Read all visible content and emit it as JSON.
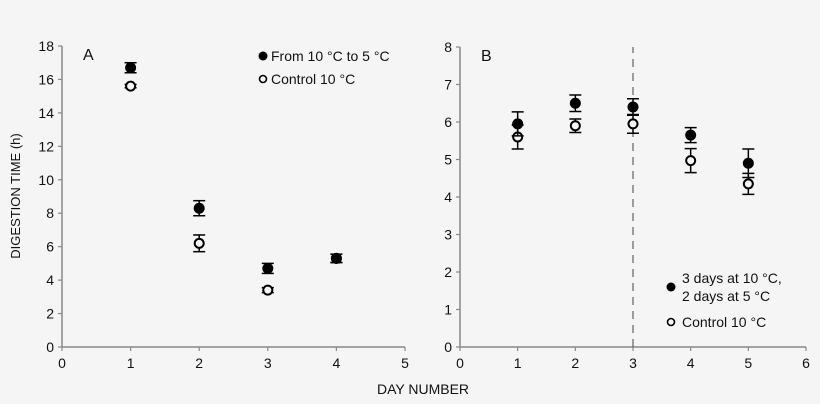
{
  "chart_data": [
    {
      "type": "scatter",
      "panel": "A",
      "xlabel": "DAY NUMBER",
      "ylabel": "DIGESTION TIME (h)",
      "xlim": [
        0,
        5
      ],
      "ylim": [
        0,
        18
      ],
      "xticks": [
        0,
        1,
        2,
        3,
        4,
        5
      ],
      "yticks": [
        0,
        2,
        4,
        6,
        8,
        10,
        12,
        14,
        16,
        18
      ],
      "grid": false,
      "legend_position": "top-right",
      "series": [
        {
          "name": "From 10 °C to 5 °C",
          "marker": "filled-circle",
          "x": [
            1,
            2,
            3,
            4
          ],
          "y": [
            16.7,
            8.3,
            4.7,
            5.3
          ],
          "err": [
            0.3,
            0.45,
            0.3,
            0.25
          ]
        },
        {
          "name": "Control 10 °C",
          "marker": "open-circle",
          "x": [
            1,
            2,
            3,
            4
          ],
          "y": [
            15.6,
            6.2,
            3.4,
            5.3
          ],
          "err": [
            0.1,
            0.5,
            0.15,
            0.25
          ]
        }
      ]
    },
    {
      "type": "scatter",
      "panel": "B",
      "xlabel": "DAY NUMBER",
      "ylabel": "",
      "xlim": [
        0,
        6
      ],
      "ylim": [
        0,
        8
      ],
      "xticks": [
        0,
        1,
        2,
        3,
        4,
        5,
        6
      ],
      "yticks": [
        0,
        1,
        2,
        3,
        4,
        5,
        6,
        7,
        8
      ],
      "grid": false,
      "annotations": [
        {
          "type": "vertical-dashed-line",
          "x": 3
        }
      ],
      "legend_position": "bottom-right",
      "series": [
        {
          "name": "3 days at 10 °C, 2 days at 5 °C",
          "marker": "filled-circle",
          "x": [
            1,
            2,
            3,
            4,
            5
          ],
          "y": [
            5.95,
            6.5,
            6.4,
            5.65,
            4.9
          ],
          "err": [
            0.32,
            0.22,
            0.22,
            0.2,
            0.38
          ]
        },
        {
          "name": "Control 10 °C",
          "marker": "open-circle",
          "x": [
            1,
            2,
            3,
            4,
            5
          ],
          "y": [
            5.6,
            5.9,
            5.95,
            4.97,
            4.35
          ],
          "err": [
            0.32,
            0.18,
            0.25,
            0.32,
            0.28
          ]
        }
      ]
    }
  ],
  "panels": {
    "a_label": "A",
    "b_label": "B",
    "x_axis_title": "DAY NUMBER",
    "y_axis_title": "DIGESTION TIME (h)",
    "legend_a": [
      "From 10 °C to 5 °C",
      "Control 10 °C"
    ],
    "legend_b": [
      "3 days at 10 °C,",
      "2 days at 5 °C",
      "Control 10 °C"
    ]
  }
}
